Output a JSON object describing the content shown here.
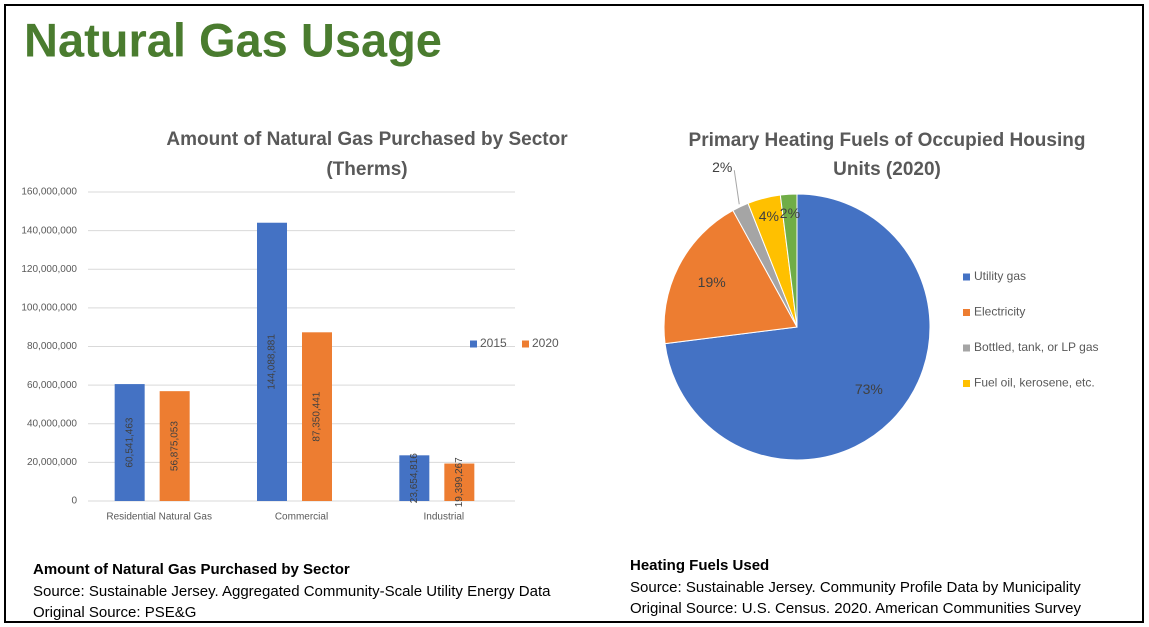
{
  "title": "Natural Gas Usage",
  "chart_data": [
    {
      "type": "bar",
      "title": [
        "Amount of Natural Gas Purchased by Sector",
        "(Therms)"
      ],
      "categories": [
        "Residential Natural Gas",
        "Commercial",
        "Industrial"
      ],
      "series": [
        {
          "name": "2015",
          "color": "#4472c4",
          "values": [
            60541463,
            144088881,
            23654816
          ],
          "value_labels": [
            "60,541,463",
            "144,088,881",
            "23,654,816"
          ]
        },
        {
          "name": "2020",
          "color": "#ed7d31",
          "values": [
            56875053,
            87350441,
            19399267
          ],
          "value_labels": [
            "56,875,053",
            "87,350,441",
            "19,399,267"
          ]
        }
      ],
      "ylim": [
        0,
        160000000
      ],
      "yticks": [
        0,
        {
          "value": 20000000,
          "label": "20,000,000"
        },
        {
          "value": 40000000,
          "label": "40,000,000"
        },
        {
          "value": 60000000,
          "label": "60,000,000"
        },
        {
          "value": 80000000,
          "label": "80,000,000"
        },
        {
          "value": 100000000,
          "label": "100,000,000"
        },
        {
          "value": 120000000,
          "label": "120,000,000"
        },
        {
          "value": 140000000,
          "label": "140,000,000"
        },
        {
          "value": 160000000,
          "label": "160,000,000"
        }
      ],
      "grid": true,
      "legend": "right"
    },
    {
      "type": "pie",
      "title": [
        "Primary Heating Fuels of Occupied Housing",
        "Units (2020)"
      ],
      "categories": [
        "Utility gas",
        "Electricity",
        "Bottled, tank, or LP gas",
        "Fuel oil, kerosene, etc.",
        null
      ],
      "values": [
        73,
        19,
        2,
        4,
        2
      ],
      "value_labels": [
        "73%",
        "19%",
        "2%",
        "4%",
        "2%"
      ],
      "colors": [
        "#4472c4",
        "#ed7d31",
        "#a5a5a5",
        "#ffc000",
        "#70ad47"
      ],
      "legend": "right"
    }
  ],
  "captions": [
    {
      "heading": "Amount of Natural Gas Purchased by Sector",
      "lines": [
        "Source: Sustainable Jersey. Aggregated Community-Scale Utility Energy Data",
        "Original Source: PSE&G"
      ]
    },
    {
      "heading": "Heating Fuels Used",
      "lines": [
        "Source: Sustainable Jersey. Community Profile Data by Municipality",
        "Original Source: U.S. Census. 2020. American Communities Survey"
      ]
    }
  ]
}
